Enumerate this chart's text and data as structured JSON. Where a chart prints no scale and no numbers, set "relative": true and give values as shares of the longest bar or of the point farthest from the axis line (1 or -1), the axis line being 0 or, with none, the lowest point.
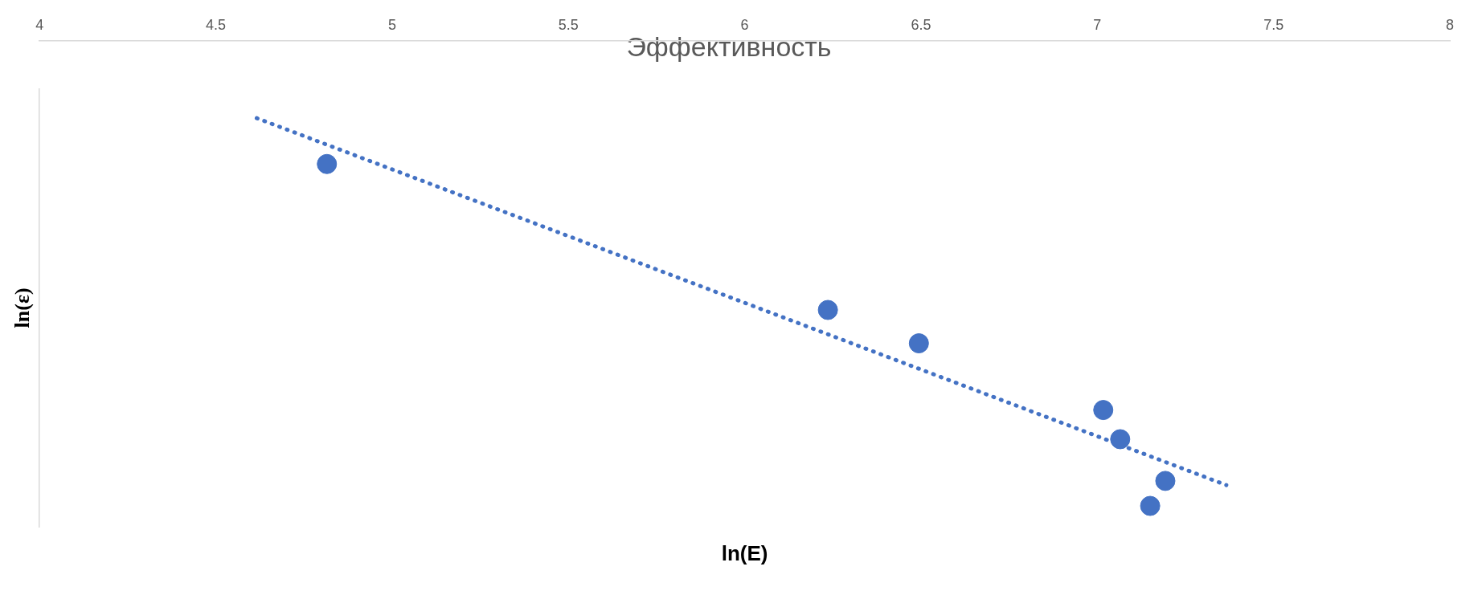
{
  "chart_data": {
    "type": "scatter",
    "title": "Эффективность",
    "xlabel": "ln(E)",
    "ylabel": "ln(ε)",
    "relative": true,
    "xlim": [
      4,
      8
    ],
    "xticks": [
      4,
      4.5,
      5,
      5.5,
      6,
      6.5,
      7,
      7.5,
      8
    ],
    "grid": false,
    "legend": false,
    "marker": "circle",
    "series": [
      {
        "color": "#4472c4",
        "x": [
          4.815,
          6.236,
          6.494,
          7.017,
          7.065,
          7.193,
          7.15
        ],
        "values": [
          -0.18,
          -0.53,
          -0.61,
          -0.77,
          -0.84,
          -0.94,
          -1
        ]
      },
      {
        "type": "line",
        "color": "#4472c4",
        "line_style": "dotted",
        "marker": "none",
        "x": [
          4.616,
          7.366
        ],
        "values": [
          -0.07,
          -0.95
        ]
      }
    ]
  }
}
